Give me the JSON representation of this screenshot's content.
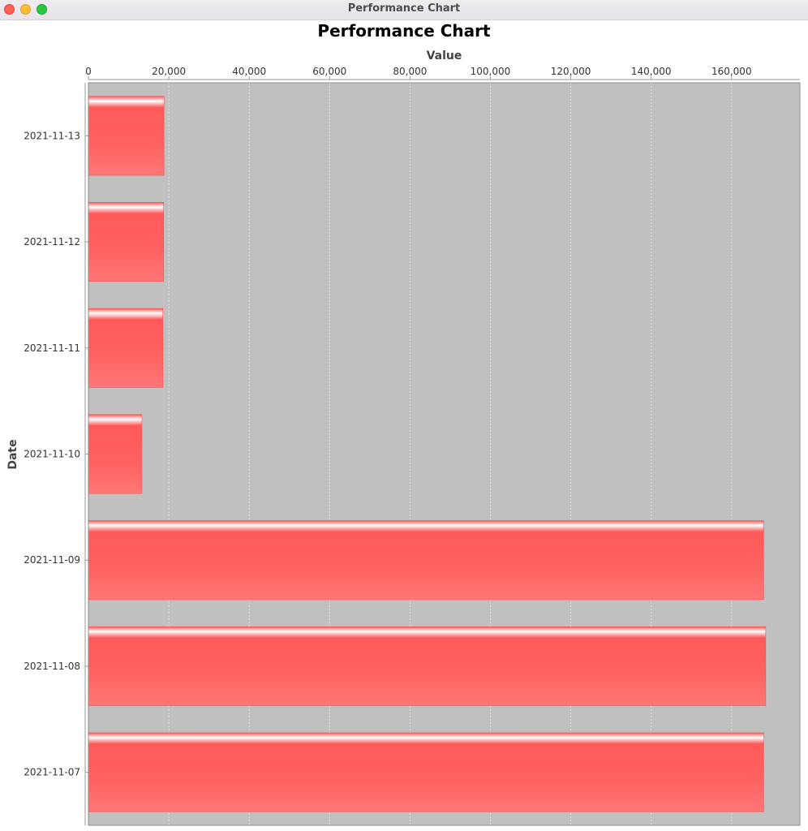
{
  "window": {
    "title": "Performance Chart"
  },
  "colors": {
    "plot_background": "#c0c0c0",
    "bar": "#ff5555",
    "gridline": "#e8e8e8"
  },
  "chart_data": {
    "type": "bar",
    "orientation": "horizontal",
    "title": "Performance Chart",
    "xlabel": "Value",
    "ylabel": "Date",
    "x_axis_position": "top",
    "categories": [
      "2021-11-13",
      "2021-11-12",
      "2021-11-11",
      "2021-11-10",
      "2021-11-09",
      "2021-11-08",
      "2021-11-07"
    ],
    "values": [
      18800,
      18700,
      18500,
      13300,
      168000,
      168500,
      168000
    ],
    "xlim": [
      0,
      177000
    ],
    "xticks": [
      0,
      20000,
      40000,
      60000,
      80000,
      100000,
      120000,
      140000,
      160000
    ],
    "xtick_labels": [
      "0",
      "20,000",
      "40,000",
      "60,000",
      "80,000",
      "100,000",
      "120,000",
      "140,000",
      "160,000"
    ],
    "grid": true,
    "legend": false
  }
}
